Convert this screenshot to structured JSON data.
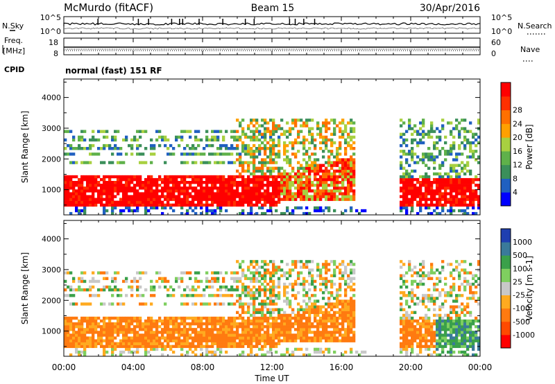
{
  "header": {
    "station": "McMurdo (fitACF)",
    "beam": "Beam 15",
    "date": "30/Apr/2016"
  },
  "top_panels": {
    "nsky_label": "N.Sky",
    "nsky_tick_top": "10^5",
    "nsky_tick_bottom": "10^0",
    "nsearch_label": "N.Search",
    "nsearch_tick_top": "10^5",
    "nsearch_tick_bottom": "10^0",
    "freq_label_line1": "Freq.",
    "freq_label_line2": "[MHz]",
    "freq_tick_top": "18",
    "freq_tick_bottom": "8",
    "nave_label": "Nave",
    "nave_tick_top": "60",
    "nave_tick_bottom": "0",
    "cpid_label": "CPID",
    "cpid_value": "normal (fast) 151 RF"
  },
  "colors": {
    "power": [
      "#0000ff",
      "#2060c0",
      "#3b8f5a",
      "#5fb14a",
      "#a8d040",
      "#ffa000",
      "#ff7000",
      "#ff3000",
      "#ff0000"
    ],
    "velocity": [
      "#ff0000",
      "#ff4a00",
      "#ff7a10",
      "#ffaa20",
      "#c8c8c8",
      "#7fcf5f",
      "#3aa04a",
      "#3a7a9a",
      "#1f3fb0"
    ]
  },
  "chart_data": [
    {
      "type": "heatmap",
      "quantity": "Power",
      "ylabel": "Slant Range [km]",
      "xlabel": "Time UT",
      "xlim": [
        "00:00",
        "24:00"
      ],
      "ylim": [
        180,
        4600
      ],
      "x_ticks": [
        "00:00",
        "04:00",
        "08:00",
        "12:00",
        "16:00",
        "20:00",
        "00:00"
      ],
      "y_ticks": [
        1000,
        2000,
        3000,
        4000
      ],
      "colorbar_label": "Power [dB]",
      "colorbar_ticks": [
        "4",
        "8",
        "12",
        "16",
        "20",
        "24",
        "28"
      ]
    },
    {
      "type": "heatmap",
      "quantity": "Velocity",
      "ylabel": "Slant Range [km]",
      "xlabel": "Time UT",
      "xlim": [
        "00:00",
        "24:00"
      ],
      "ylim": [
        180,
        4600
      ],
      "x_ticks": [
        "00:00",
        "04:00",
        "08:00",
        "12:00",
        "16:00",
        "20:00",
        "00:00"
      ],
      "y_ticks": [
        1000,
        2000,
        3000,
        4000
      ],
      "colorbar_label": "Velocity [m s-1]",
      "colorbar_ticks": [
        "1000",
        "500",
        "100",
        "25",
        "-25",
        "-100",
        "-500",
        "-1000"
      ]
    }
  ]
}
